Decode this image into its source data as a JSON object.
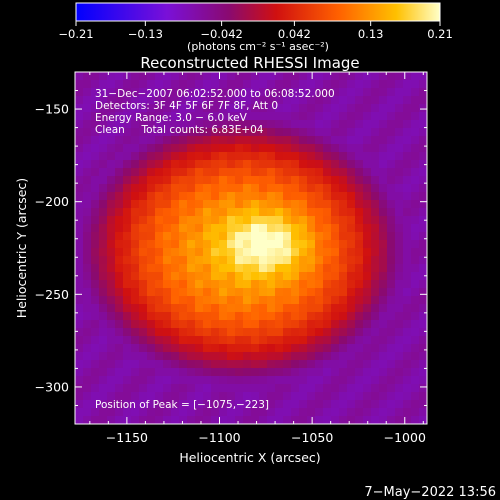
{
  "chart_data": {
    "type": "heatmap",
    "title": "Reconstructed RHESSI Image",
    "xlabel": "Heliocentric X (arcsec)",
    "ylabel": "Heliocentric Y (arcsec)",
    "xlim": [
      -1178,
      -988
    ],
    "ylim": [
      -320,
      -130
    ],
    "x_ticks": [
      -1150,
      -1100,
      -1050,
      -1000
    ],
    "y_ticks": [
      -150,
      -200,
      -250,
      -300
    ],
    "x_tick_labels": [
      "−1150",
      "−1100",
      "−1050",
      "−1000"
    ],
    "y_tick_labels": [
      "−150",
      "−200",
      "−250",
      "−300"
    ],
    "colorbar": {
      "range": [
        -0.21,
        0.21
      ],
      "ticks": [
        -0.21,
        -0.13,
        -0.042,
        0.042,
        0.13,
        0.21
      ],
      "tick_labels": [
        "−0.21",
        "−0.13",
        "−0.042",
        "0.042",
        "0.13",
        "0.21"
      ],
      "unit_label": "(photons cm⁻² s⁻¹ asec⁻²)"
    },
    "annotations": [
      "31−Dec−2007 06:02:52.000 to 06:08:52.000",
      "Detectors: 3F 4F 5F 6F 7F 8F, Att 0",
      "Energy Range: 3.0 − 6.0 keV",
      "Clean     Total counts: 6.83E+04"
    ],
    "peak_label": "Position of Peak = [−1075,−223]",
    "peak": [
      -1075,
      -223
    ],
    "peak_value": 0.21,
    "source_extent": {
      "center": [
        -1088,
        -226
      ],
      "radius_x": 88,
      "radius_y": 72
    },
    "background_value": -0.07,
    "footer_date": "7−May−2022 13:56"
  }
}
